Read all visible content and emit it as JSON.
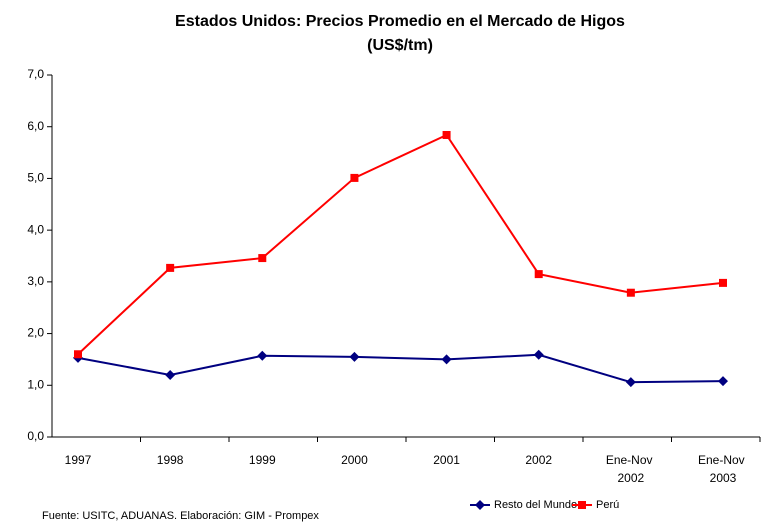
{
  "chart_data": {
    "type": "line",
    "title": "Estados Unidos: Precios Promedio en el Mercado de Higos",
    "subtitle": "(US$/tm)",
    "categories": [
      "1997",
      "1998",
      "1999",
      "2000",
      "2001",
      "2002",
      "Ene-Nov 2002",
      "Ene-Nov 2003"
    ],
    "series": [
      {
        "name": "Resto del Mundo",
        "color": "#000080",
        "marker": "diamond",
        "values": [
          1.53,
          1.2,
          1.57,
          1.55,
          1.5,
          1.59,
          1.06,
          1.08
        ]
      },
      {
        "name": "Perú",
        "color": "#ff0000",
        "marker": "square",
        "values": [
          1.6,
          3.27,
          3.46,
          5.01,
          5.84,
          3.15,
          2.79,
          2.98
        ]
      }
    ],
    "ylim": [
      0,
      7
    ],
    "yticks": [
      {
        "value": 0,
        "label": "0,0"
      },
      {
        "value": 1,
        "label": "1,0"
      },
      {
        "value": 2,
        "label": "2,0"
      },
      {
        "value": 3,
        "label": "3,0"
      },
      {
        "value": 4,
        "label": "4,0"
      },
      {
        "value": 5,
        "label": "5,0"
      },
      {
        "value": 6,
        "label": "6,0"
      },
      {
        "value": 7,
        "label": "7,0"
      }
    ],
    "grid": false,
    "legend": "bottom-right",
    "source": "Fuente: USITC, ADUANAS. Elaboración: GIM - Prompex"
  }
}
